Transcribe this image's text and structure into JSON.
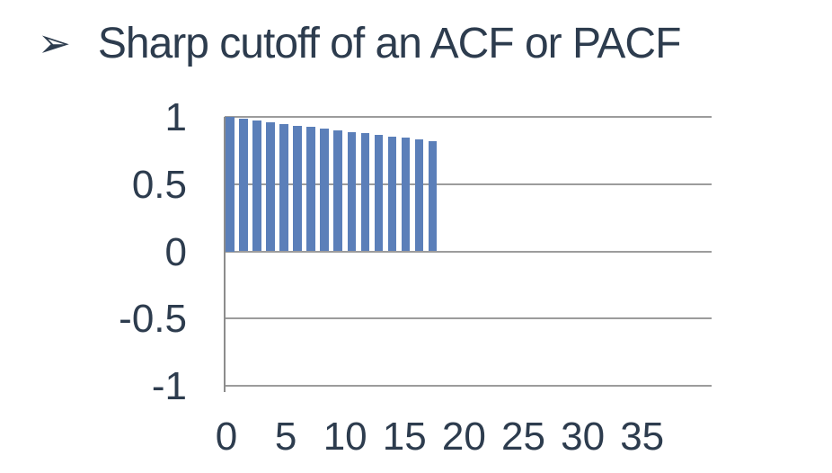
{
  "slide": {
    "bullet_icon": "➢",
    "title": "Sharp cutoff of an ACF or PACF"
  },
  "colors": {
    "text": "#2d3c4e",
    "bar": "#5b7fb9",
    "gridline": "#9c9c9c",
    "axis_line": "#8c8c8c",
    "background": "#ffffff"
  },
  "chart_data": {
    "type": "bar",
    "title": "",
    "xlabel": "",
    "ylabel": "",
    "x": [
      0,
      1,
      2,
      3,
      4,
      5,
      6,
      7,
      8,
      9,
      10,
      11,
      12,
      13,
      14,
      15
    ],
    "values": [
      1.0,
      0.987,
      0.974,
      0.961,
      0.949,
      0.936,
      0.924,
      0.912,
      0.9,
      0.889,
      0.877,
      0.866,
      0.854,
      0.843,
      0.832,
      0.821
    ],
    "ylim": [
      -1,
      1
    ],
    "xlim": [
      0,
      41
    ],
    "yticks": [
      1,
      0.5,
      0,
      -0.5,
      -1
    ],
    "ytick_labels": [
      "1",
      "0.5",
      "0",
      "-0.5",
      "-1"
    ],
    "xticks": [
      0,
      5,
      10,
      15,
      20,
      25,
      30,
      35
    ],
    "xtick_labels": [
      "0",
      "5",
      "10",
      "15",
      "20",
      "25",
      "30",
      "35"
    ],
    "grid": true,
    "legend": false,
    "cutoff_after_lag": 15
  }
}
